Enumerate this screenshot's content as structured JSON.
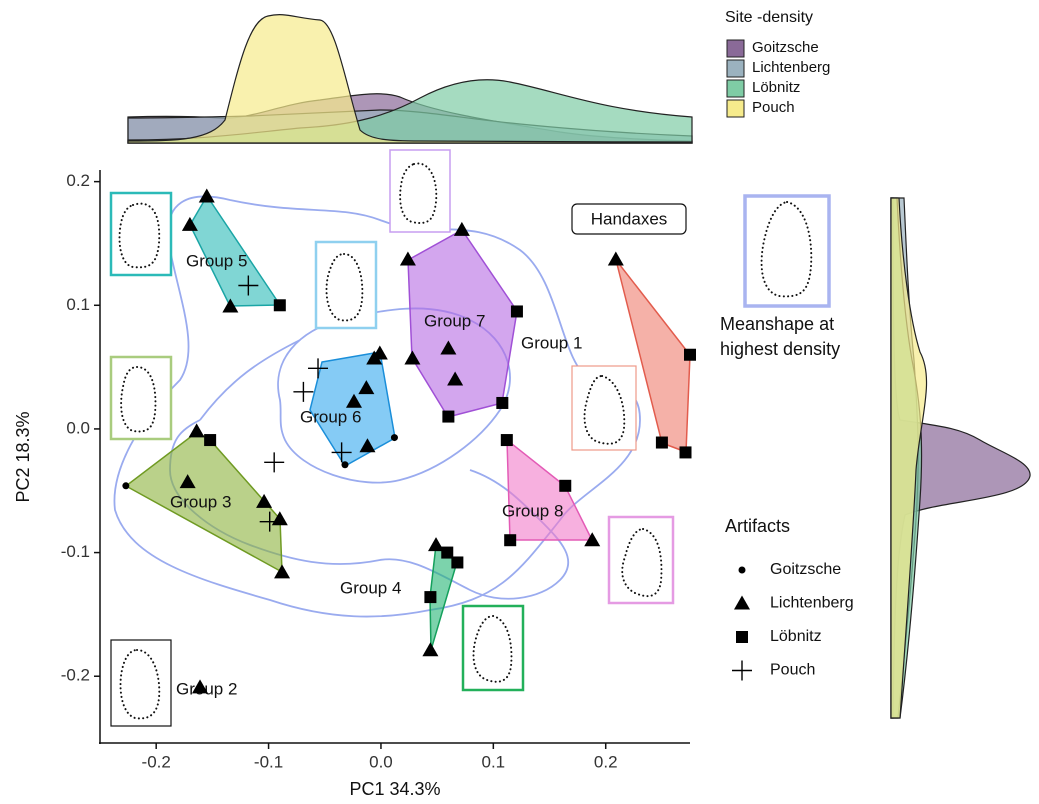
{
  "chart_data": {
    "type": "scatter",
    "xlabel": "PC1 34.3%",
    "ylabel": "PC2 18.3%",
    "xlim": [
      -0.25,
      0.275
    ],
    "ylim": [
      -0.254,
      0.209
    ],
    "xticks": [
      -0.2,
      -0.1,
      {
        "value": 0,
        "label": "0.0"
      },
      0.1,
      0.2
    ],
    "yticks": [
      -0.2,
      -0.1,
      {
        "value": 0,
        "label": "0.0"
      },
      0.1,
      0.2
    ],
    "legend_title": "Artifacts",
    "series": [
      {
        "name": "Goitzsche",
        "marker": "circle",
        "color": "#000000",
        "x": [
          -0.227,
          -0.032,
          0.012
        ],
        "y": [
          -0.046,
          -0.029,
          -0.007
        ]
      },
      {
        "name": "Lichtenberg",
        "marker": "triangle",
        "color": "#000000",
        "x": [
          -0.155,
          -0.17,
          -0.134,
          0.024,
          0.072,
          0.028,
          0.06,
          0.066,
          0.209,
          -0.006,
          -0.001,
          -0.013,
          -0.024,
          -0.012,
          -0.164,
          -0.172,
          -0.104,
          -0.09,
          -0.088,
          0.049,
          0.044,
          0.188,
          -0.161
        ],
        "y": [
          0.188,
          0.165,
          0.099,
          0.137,
          0.161,
          0.057,
          0.065,
          0.04,
          0.137,
          0.057,
          0.061,
          0.033,
          0.022,
          -0.014,
          -0.002,
          -0.043,
          -0.059,
          -0.073,
          -0.116,
          -0.094,
          -0.179,
          -0.09,
          -0.209
        ]
      },
      {
        "name": "Löbnitz",
        "marker": "square",
        "color": "#000000",
        "x": [
          -0.09,
          0.121,
          0.108,
          0.06,
          -0.152,
          0.275,
          0.25,
          0.271,
          0.112,
          0.164,
          0.115,
          0.059,
          0.068,
          0.044
        ],
        "y": [
          0.1,
          0.095,
          0.021,
          0.01,
          -0.009,
          0.06,
          -0.011,
          -0.019,
          -0.009,
          -0.046,
          -0.09,
          -0.1,
          -0.108,
          -0.136
        ]
      },
      {
        "name": "Pouch",
        "marker": "plus",
        "color": "#000000",
        "x": [
          -0.118,
          -0.069,
          -0.056,
          -0.035,
          -0.095,
          -0.099
        ],
        "y": [
          0.116,
          0.03,
          0.049,
          -0.019,
          -0.027,
          -0.075
        ]
      }
    ],
    "group_labels": [
      "Group 5",
      "Group 7",
      "Group 1",
      "Group 6",
      "Group 3",
      "Group 8",
      "Group 4",
      "Group 2"
    ],
    "handaxes_label": "Handaxes",
    "inset_label": [
      "Meanshape at",
      "highest density"
    ],
    "density": {
      "title": "Site -density",
      "series": [
        {
          "name": "Goitzsche",
          "color": "#8a6a98"
        },
        {
          "name": "Lichtenberg",
          "color": "#9bb2bf"
        },
        {
          "name": "Löbnitz",
          "color": "#7fcca5"
        },
        {
          "name": "Pouch",
          "color": "#f6eb8c"
        }
      ]
    }
  }
}
